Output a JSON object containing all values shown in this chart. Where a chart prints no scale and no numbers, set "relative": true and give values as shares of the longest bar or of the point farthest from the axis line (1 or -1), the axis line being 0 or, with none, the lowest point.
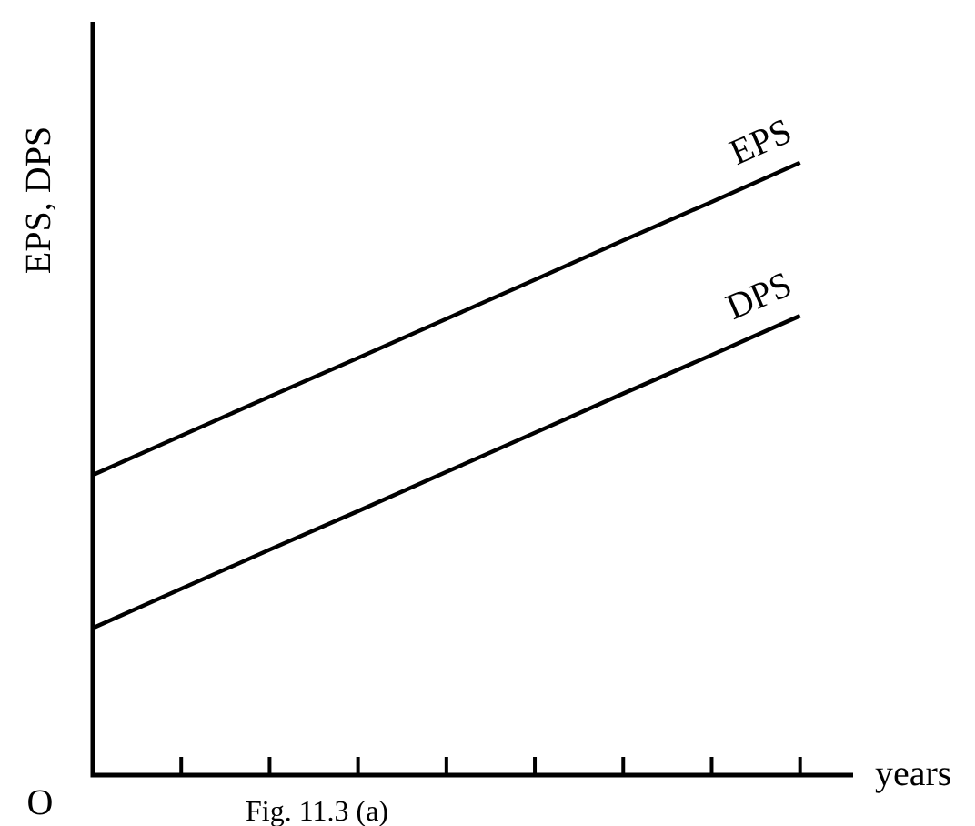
{
  "chart_data": {
    "type": "line",
    "relative": true,
    "ylabel": "EPS, DPS",
    "xlabel": "years",
    "annotations": [
      "O",
      "Fig. 11.3 (a)"
    ],
    "categories": [
      null,
      null,
      null,
      null,
      null,
      null,
      null,
      null,
      null
    ],
    "series": [
      {
        "name": "EPS",
        "color": "#000000",
        "values": [
          0.49,
          0.554,
          0.618,
          0.681,
          0.745,
          0.809,
          0.873,
          0.936,
          1
        ]
      },
      {
        "name": "DPS",
        "color": "#000000",
        "values": [
          0.24,
          0.304,
          0.368,
          0.431,
          0.495,
          0.559,
          0.623,
          0.686,
          0.75
        ]
      }
    ],
    "legend": false,
    "marker": "none",
    "line_style": "solid"
  }
}
